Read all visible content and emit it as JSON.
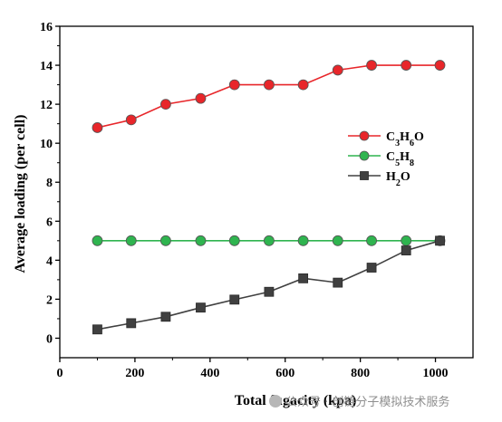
{
  "chart_data": {
    "type": "line",
    "xlabel": "Total fugacity (kpa)",
    "ylabel": "Average loading (per cell)",
    "xlim": [
      0,
      1100
    ],
    "ylim": [
      -1,
      16
    ],
    "xticks": [
      0,
      200,
      400,
      600,
      800,
      1000
    ],
    "yticks": [
      0,
      2,
      4,
      6,
      8,
      10,
      12,
      14,
      16
    ],
    "grid": false,
    "legend_position": "right-middle",
    "series": [
      {
        "name": "C3H6O",
        "name_parts": [
          [
            "C",
            "n"
          ],
          [
            "3",
            "s"
          ],
          [
            "H",
            "n"
          ],
          [
            "6",
            "s"
          ],
          [
            "O",
            "n"
          ]
        ],
        "marker": "circle",
        "color": "#e8262a",
        "x": [
          100,
          190,
          282,
          375,
          465,
          557,
          648,
          740,
          830,
          922,
          1012
        ],
        "y": [
          10.8,
          11.2,
          12.0,
          12.3,
          13.0,
          13.0,
          13.0,
          13.75,
          14.0,
          14.0,
          14.0
        ]
      },
      {
        "name": "C5H8",
        "name_parts": [
          [
            "C",
            "n"
          ],
          [
            "5",
            "s"
          ],
          [
            "H",
            "n"
          ],
          [
            "8",
            "s"
          ]
        ],
        "marker": "circle",
        "color": "#2fb44f",
        "x": [
          100,
          190,
          282,
          375,
          465,
          557,
          648,
          740,
          830,
          922,
          1012
        ],
        "y": [
          5.0,
          5.0,
          5.0,
          5.0,
          5.0,
          5.0,
          5.0,
          5.0,
          5.0,
          5.0,
          5.0
        ]
      },
      {
        "name": "H2O",
        "name_parts": [
          [
            "H",
            "n"
          ],
          [
            "2",
            "s"
          ],
          [
            "O",
            "n"
          ]
        ],
        "marker": "square",
        "color": "#404040",
        "x": [
          100,
          190,
          282,
          375,
          465,
          557,
          648,
          740,
          830,
          922,
          1012
        ],
        "y": [
          0.45,
          0.77,
          1.1,
          1.57,
          1.98,
          2.38,
          3.07,
          2.85,
          3.62,
          4.5,
          5.0
        ]
      }
    ]
  },
  "watermark": {
    "text": "公众号 · 创链分子模拟技术服务",
    "icon": "wechat-icon"
  }
}
